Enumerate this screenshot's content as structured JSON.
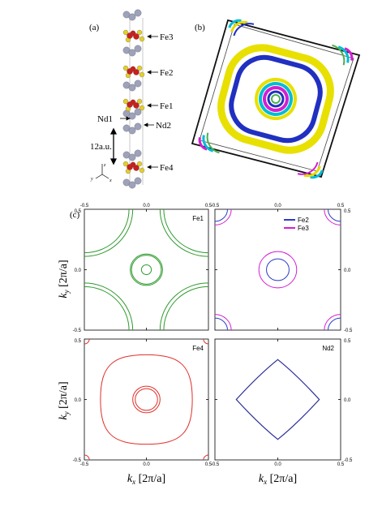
{
  "figure": {
    "panel_a": {
      "label": "(a)",
      "atom_labels": [
        "Fe3",
        "Fe2",
        "Fe1",
        "Nd1",
        "Nd2",
        "Fe4"
      ],
      "spacing_label": "12a.u.",
      "axes": [
        "z",
        "y",
        "x"
      ]
    },
    "panel_b": {
      "label": "(b)"
    },
    "panel_c": {
      "label": "(c)",
      "xlabel": "k",
      "xsub": "x",
      "ylabel": "k",
      "ysub": "y",
      "unit": "[2π/a]",
      "ticks": [
        "-0.5",
        "0.0",
        "0.5"
      ]
    },
    "colors": {
      "fe1": "#2e9a2e",
      "fe2": "#2b3cc8",
      "fe3": "#d21fd2",
      "fe4": "#e0302a",
      "nd2": "#2b2b9a",
      "iron_atom": "#c8201e",
      "ligand_atom": "#e2cf2a",
      "nd_atom": "#9ea2bb",
      "yellow_sheet": "#e8e000",
      "blue_sheet": "#2030c0"
    }
  },
  "chart_data": [
    {
      "type": "line",
      "panel": "Fe1",
      "series": [
        {
          "name": "Fe1"
        }
      ],
      "xlim": [
        -0.5,
        0.5
      ],
      "ylim": [
        -0.5,
        0.5
      ],
      "rings": [
        {
          "shape": "circle",
          "center": [
            0,
            0
          ],
          "radius": 0.04
        },
        {
          "shape": "circle",
          "center": [
            0,
            0
          ],
          "radius": 0.12
        },
        {
          "shape": "circle",
          "center": [
            0,
            0
          ],
          "radius": 0.13
        },
        {
          "shape": "corner_arc",
          "radius": 0.36
        },
        {
          "shape": "corner_arc",
          "radius": 0.39
        }
      ]
    },
    {
      "type": "line",
      "panel": "Fe2/Fe3",
      "series": [
        {
          "name": "Fe2"
        },
        {
          "name": "Fe3"
        }
      ],
      "xlim": [
        -0.5,
        0.5
      ],
      "ylim": [
        -0.5,
        0.5
      ],
      "rings": [
        {
          "shape": "circle",
          "center": [
            0,
            0
          ],
          "radius": 0.09
        },
        {
          "shape": "circle",
          "center": [
            0,
            0
          ],
          "radius": 0.15
        },
        {
          "shape": "corner_arc",
          "radius": 0.1
        },
        {
          "shape": "corner_arc",
          "radius": 0.13
        }
      ]
    },
    {
      "type": "line",
      "panel": "Fe4",
      "series": [
        {
          "name": "Fe4"
        }
      ],
      "xlim": [
        -0.5,
        0.5
      ],
      "ylim": [
        -0.5,
        0.5
      ],
      "rings": [
        {
          "shape": "circle",
          "center": [
            0,
            0
          ],
          "radius": 0.09
        },
        {
          "shape": "circle",
          "center": [
            0,
            0
          ],
          "radius": 0.11
        },
        {
          "shape": "rounded_square",
          "center": [
            0,
            0
          ],
          "radius": 0.37
        },
        {
          "shape": "corner_arc",
          "radius": 0.04
        }
      ]
    },
    {
      "type": "line",
      "panel": "Nd2",
      "series": [
        {
          "name": "Nd2"
        }
      ],
      "xlim": [
        -0.5,
        0.5
      ],
      "ylim": [
        -0.5,
        0.5
      ],
      "rings": [
        {
          "shape": "diamond",
          "center": [
            0,
            0
          ],
          "radius": 0.33
        }
      ]
    }
  ]
}
